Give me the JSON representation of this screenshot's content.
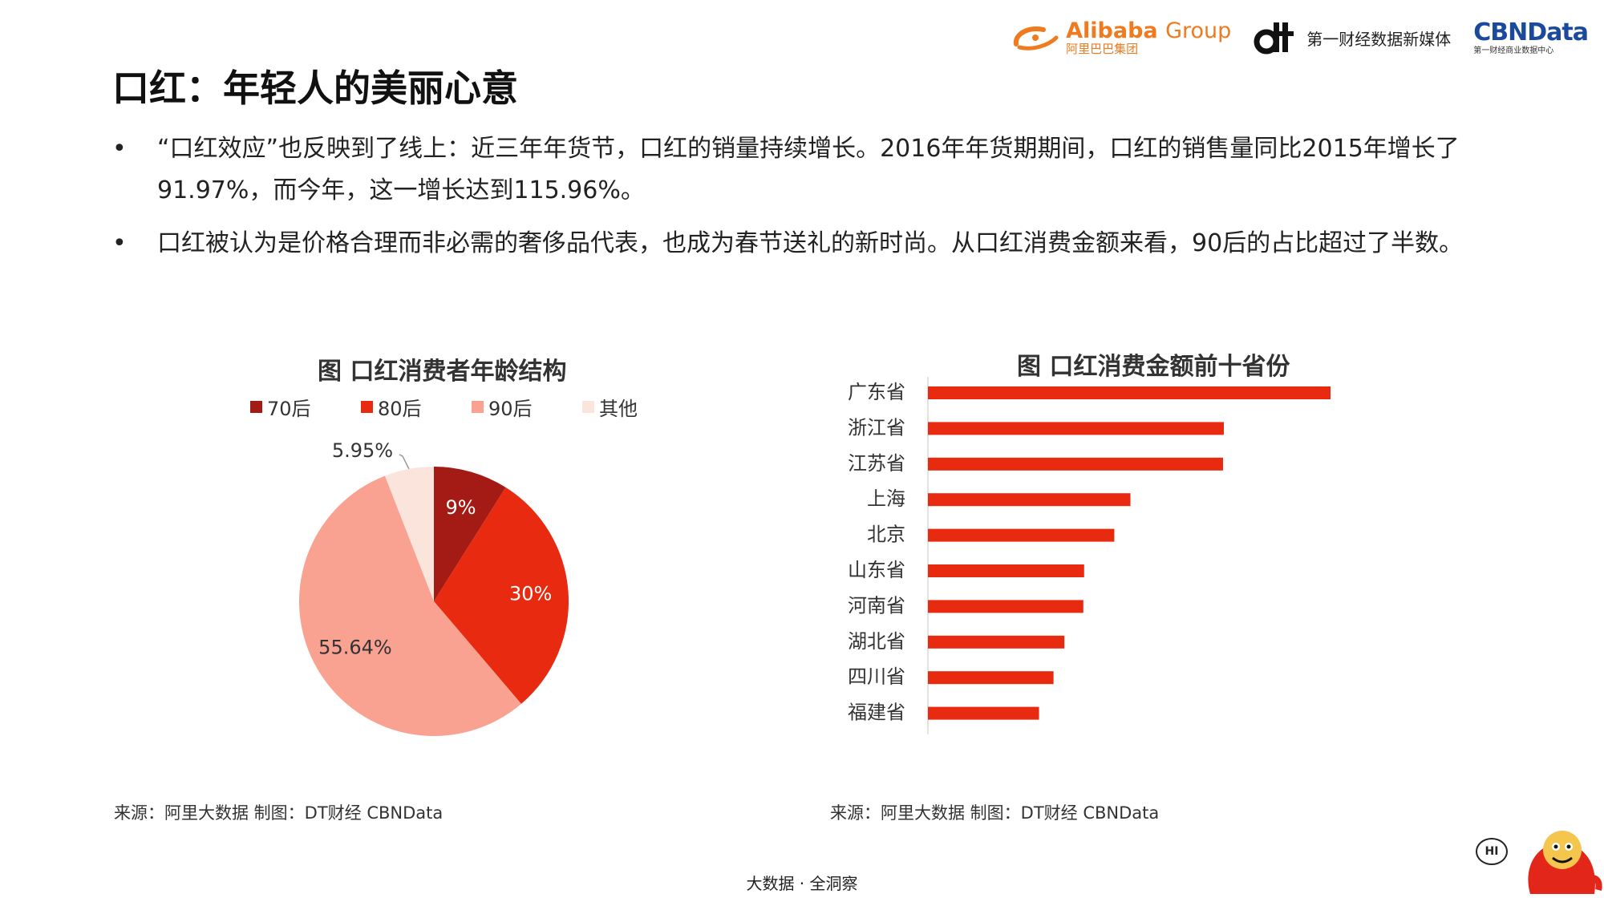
{
  "header": {
    "alibaba_en": "Alibaba",
    "alibaba_group": "Group",
    "alibaba_cn": "阿里巴巴集团",
    "dt_text": "第一财经数据新媒体",
    "cbn_title": "CBNData",
    "cbn_sub": "第一财经商业数据中心"
  },
  "page_title": "口红：年轻人的美丽心意",
  "bullets": [
    {
      "marker": "•",
      "text": " “口红效应”也反映到了线上：近三年年货节，口红的销量持续增长。2016年年货期期间，口红的销售量同比2015年增长了91.97%，而今年，这一增长达到115.96%。"
    },
    {
      "marker": "•",
      "text": "口红被认为是价格合理而非必需的奢侈品代表，也成为春节送礼的新时尚。从口红消费金额来看，90后的占比超过了半数。"
    }
  ],
  "chart_data": [
    {
      "type": "pie",
      "title": "图 口红消费者年龄结构",
      "categories": [
        "70后",
        "80后",
        "90后",
        "其他"
      ],
      "values": [
        9,
        30,
        55.64,
        5.95
      ],
      "labels": [
        "9%",
        "30%",
        "55.64%",
        "5.95%"
      ],
      "colors": [
        "#a31b14",
        "#e82a10",
        "#f9a291",
        "#fbe4dc"
      ],
      "legend_position": "top",
      "start_angle": "12 o'clock, clockwise"
    },
    {
      "type": "bar",
      "orientation": "horizontal",
      "title": "图 口红消费金额前十省份",
      "categories": [
        "广东省",
        "浙江省",
        "江苏省",
        "上海",
        "北京",
        "山东省",
        "河南省",
        "湖北省",
        "四川省",
        "福建省"
      ],
      "values": [
        100,
        73.5,
        73.3,
        50.3,
        46.3,
        38.8,
        38.6,
        33.9,
        31.2,
        27.6
      ],
      "xlim": [
        0,
        100
      ],
      "color": "#e82a10",
      "grid": false,
      "value_axis_shown": false
    }
  ],
  "sources": {
    "left": "来源：阿里大数据   制图：DT财经    CBNData",
    "right": "来源：阿里大数据   制图：DT财经    CBNData"
  },
  "footer": "大数据 · 全洞察",
  "mascot": {
    "hi": "HI"
  }
}
